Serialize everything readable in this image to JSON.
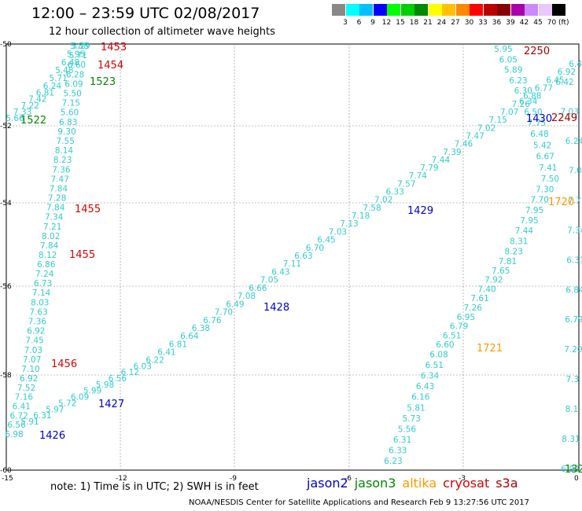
{
  "title": "12:00 – 23:59 UTC 02/08/2017",
  "subtitle": "12 hour collection of altimeter wave heights",
  "colorbar": {
    "colors": [
      "#888888",
      "#00ffff",
      "#00c0ff",
      "#0000ff",
      "#00ff00",
      "#00d000",
      "#008800",
      "#ffff00",
      "#ffc000",
      "#ff8800",
      "#ff0000",
      "#bb0000",
      "#880000",
      "#aa00aa",
      "#cc88ff",
      "#e8c8ff",
      "#000000"
    ],
    "labels": [
      "3",
      "6",
      "9",
      "12",
      "15",
      "18",
      "21",
      "24",
      "27",
      "30",
      "33",
      "36",
      "39",
      "42",
      "45",
      "70"
    ],
    "unit": "(ft)"
  },
  "axes": {
    "x_ticks": [
      "-15",
      "-12",
      "-9",
      "-6",
      "-3",
      "0"
    ],
    "y_ticks": [
      "-50",
      "-52",
      "-54",
      "-56",
      "-58",
      "-60"
    ]
  },
  "tracks": [
    {
      "values": [
        "5.66",
        "7.33",
        "7.22",
        "7.42",
        "6.81",
        "6.24",
        "5.71",
        "5.48",
        "6.48",
        "5.95",
        "5.29"
      ]
    },
    {
      "values": [
        "5.88",
        "5.71",
        "6.60",
        "6.28",
        "6.09",
        "5.50",
        "7.15",
        "5.60",
        "6.83",
        "9.30",
        "7.55",
        "8.14",
        "8.23",
        "7.36",
        "7.47",
        "7.84",
        "7.28",
        "7.84",
        "7.34",
        "7.21",
        "8.02",
        "7.84",
        "8.12",
        "6.86",
        "7.24",
        "6.73",
        "7.14",
        "8.03",
        "7.63",
        "7.36",
        "6.92",
        "7.45",
        "7.03",
        "7.07",
        "7.10",
        "6.92",
        "7.52",
        "7.16",
        "6.41",
        "6.72",
        "6.56",
        "6.98"
      ]
    },
    {
      "values": [
        "5.91",
        "6.31",
        "5.97",
        "5.72",
        "6.09",
        "5.99",
        "5.98",
        "6.56",
        "6.12",
        "6.03",
        "6.22",
        "6.41",
        "6.81",
        "6.64",
        "6.38",
        "6.76",
        "7.70",
        "6.49",
        "7.08",
        "6.66",
        "7.05",
        "6.43",
        "7.11",
        "6.63",
        "6.70",
        "6.45",
        "7.03",
        "7.13",
        "7.18",
        "7.58",
        "7.02",
        "6.33",
        "7.57",
        "7.74",
        "7.79",
        "7.44",
        "7.39",
        "7.46",
        "7.47",
        "7.02",
        "7.15",
        "7.07",
        "7.26",
        "6.88",
        "6.77",
        "6.45",
        "6.92",
        "6.44"
      ]
    },
    {
      "values": [
        "5.95",
        "6.05",
        "5.89",
        "6.23",
        "6.30",
        "6.34",
        "6.50",
        "7.75",
        "6.48",
        "5.42",
        "6.67",
        "7.41",
        "7.50",
        "7.30",
        "7.70",
        "7.95",
        "7.95",
        "7.44",
        "8.31",
        "8.23",
        "7.81",
        "7.65",
        "7.92",
        "7.40",
        "7.61",
        "7.26",
        "6.95",
        "6.79",
        "6.51",
        "6.60",
        "6.08",
        "6.51",
        "6.34",
        "6.43",
        "6.16",
        "5.81",
        "5.73",
        "5.56",
        "6.31",
        "6.33",
        "6.23"
      ]
    },
    {
      "values": [
        "6.42",
        "7.03",
        "6.24",
        "7.04",
        "7.71",
        "7.34",
        "6.31",
        "6.84",
        "6.79",
        "7.20",
        "7.3",
        "8.1",
        "8.31",
        "6.92"
      ]
    }
  ],
  "passes": [
    {
      "label": "1453",
      "color": "#dd0000"
    },
    {
      "label": "1454",
      "color": "#dd0000"
    },
    {
      "label": "1523",
      "color": "#008800"
    },
    {
      "label": "1522",
      "color": "#008800"
    },
    {
      "label": "1455",
      "color": "#dd0000"
    },
    {
      "label": "1455",
      "color": "#dd0000"
    },
    {
      "label": "1456",
      "color": "#dd0000"
    },
    {
      "label": "1427",
      "color": "#0000cc"
    },
    {
      "label": "1426",
      "color": "#0000cc"
    },
    {
      "label": "1428",
      "color": "#0000cc"
    },
    {
      "label": "1429",
      "color": "#0000cc"
    },
    {
      "label": "2250",
      "color": "#aa0000"
    },
    {
      "label": "1430",
      "color": "#0000cc"
    },
    {
      "label": "2249",
      "color": "#aa0000"
    },
    {
      "label": "1720",
      "color": "#ff9900"
    },
    {
      "label": "1721",
      "color": "#ff9900"
    },
    {
      "label": "132",
      "color": "#008800"
    }
  ],
  "note": "note:  1) Time is in UTC;  2) SWH is in feet",
  "legend": [
    {
      "name": "jason2",
      "color": "#0000cc"
    },
    {
      "name": "jason3",
      "color": "#008800"
    },
    {
      "name": "altika",
      "color": "#ff9900"
    },
    {
      "name": "cryosat",
      "color": "#dd0000"
    },
    {
      "name": "s3a",
      "color": "#aa0000"
    }
  ],
  "footer": "NOAA/NESDIS Center for Satellite Applications and Research    Feb  9 13:27:56 UTC 2017",
  "track_color": "#33cccc"
}
